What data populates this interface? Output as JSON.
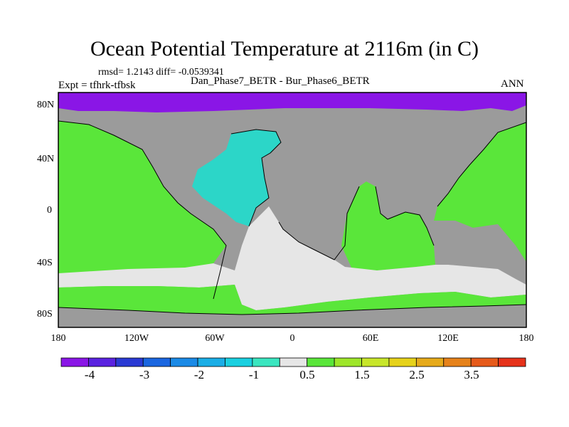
{
  "title": "Ocean Potential Temperature at 2116m (in C)",
  "stats": "rmsd= 1.2143 diff= -0.0539341",
  "expt": "Expt = tfhrk-tfbsk",
  "subtitle": "Dan_Phase7_BETR - Bur_Phase6_BETR",
  "season": "ANN",
  "y_ticks": [
    "80N",
    "40N",
    "0",
    "40S",
    "80S"
  ],
  "x_ticks": [
    "180",
    "120W",
    "60W",
    "0",
    "60E",
    "120E",
    "180"
  ],
  "colors": {
    "land": "#9b9b9b",
    "level_minus4": "#8a16e6",
    "level_minus1": "#2cd6c8",
    "level_0": "#e6e6e6",
    "level_0_5": "#5ae63a"
  },
  "colorbar": {
    "colors": [
      "#8a16e6",
      "#5a22e0",
      "#2a3ad4",
      "#1a66e0",
      "#1a8ae6",
      "#1aaee6",
      "#1ad0e0",
      "#3ae6c0",
      "#e6e6e6",
      "#5ae63a",
      "#9ee62a",
      "#c8e62a",
      "#e6d21a",
      "#e6aa1a",
      "#e6821a",
      "#e65a1a",
      "#e6321a"
    ],
    "labels": [
      "-4",
      "-3",
      "-2",
      "-1",
      "0.5",
      "1.5",
      "2.5",
      "3.5"
    ]
  }
}
